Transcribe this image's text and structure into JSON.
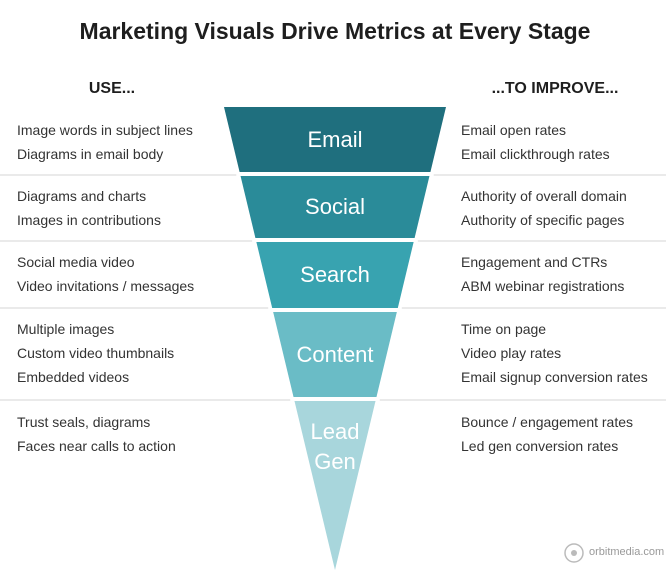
{
  "title": "Marketing Visuals Drive Metrics at Every Stage",
  "columns": {
    "left": "USE...",
    "right": "...TO IMPROVE..."
  },
  "stages": [
    {
      "name": "Email",
      "uses": [
        "Image words in subject lines",
        "Diagrams in email body"
      ],
      "improves": [
        "Email open rates",
        "Email clickthrough rates"
      ]
    },
    {
      "name": "Social",
      "uses": [
        "Diagrams and charts",
        "Images in contributions"
      ],
      "improves": [
        "Authority of overall domain",
        "Authority of specific pages"
      ]
    },
    {
      "name": "Search",
      "uses": [
        "Social media video",
        "Video invitations / messages"
      ],
      "improves": [
        "Engagement and CTRs",
        "ABM webinar registrations"
      ]
    },
    {
      "name": "Content",
      "uses": [
        "Multiple images",
        "Custom video thumbnails",
        "Embedded videos"
      ],
      "improves": [
        "Time on page",
        "Video play rates",
        "Email signup conversion rates"
      ]
    },
    {
      "name": "Lead Gen",
      "uses": [
        "Trust seals, diagrams",
        "Faces near calls to action"
      ],
      "improves": [
        "Bounce / engagement rates",
        "Led gen conversion rates"
      ]
    }
  ],
  "watermark": "orbitmedia.com"
}
